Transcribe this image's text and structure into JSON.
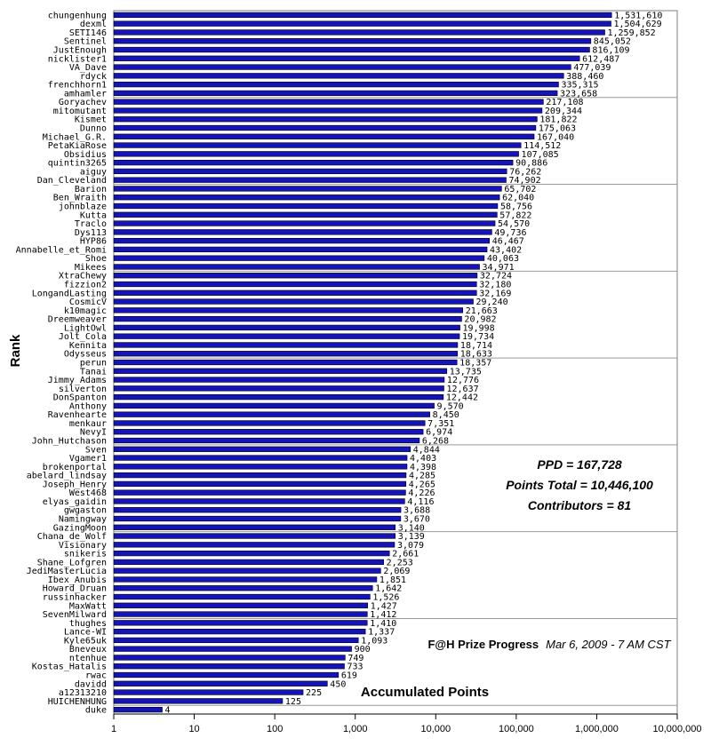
{
  "chart_data": {
    "type": "bar",
    "orientation": "horizontal",
    "xscale": "log",
    "xlim": [
      1,
      10000000
    ],
    "xticks": [
      "1",
      "10",
      "100",
      "1,000",
      "10,000",
      "100,000",
      "1,000,000",
      "10,000,000"
    ],
    "xlabel": "Accumulated Points",
    "ylabel": "Rank",
    "bar_color": "#1414b8",
    "bar_edge_color": "#000000",
    "grid": "horizontal separators every 10 rows",
    "legend": "none",
    "categories": [
      "chungenhung",
      "dexml",
      "SETI146",
      "Sentinel",
      "JustEnough",
      "nicklister1",
      "VA_Dave",
      "rdyck",
      "frenchhorn1",
      "amhamler",
      "Goryachev",
      "mitomutant",
      "Kismet",
      "Dunno",
      "Michael_G.R.",
      "PetaKiaRose",
      "Obsidius",
      "quintin3265",
      "aiguy",
      "Dan_Cleveland",
      "Barion",
      "Ben_Wraith",
      "johnblaze",
      "Kutta",
      "Traclo",
      "Dys113",
      "HYP86",
      "Annabelle_et_Romi",
      "Shoe",
      "Mikees",
      "XtraChewy",
      "fizzion2",
      "LongandLasting",
      "CosmicV",
      "k10magic",
      "Dreemweaver",
      "LightOwl",
      "Jolt_Cola",
      "Kennita",
      "Odysseus",
      "perun",
      "Tanai",
      "Jimmy_Adams",
      "silverton",
      "DonSpanton",
      "Anthony",
      "Ravenhearte",
      "menkaur",
      "NevyI",
      "John_Hutchason",
      "Sven",
      "Vgamer1",
      "brokenportal",
      "abelard_lindsay",
      "Joseph_Henry",
      "West468",
      "elyas_gaidin",
      "gwgaston",
      "Namingway",
      "GazingMoon",
      "Chana_de_Wolf",
      "Visionary",
      "snikeris",
      "Shane_Lofgren",
      "JediMasterLucia",
      "Ibex_Anubis",
      "Howard_Druan",
      "russinhacker",
      "MaxWatt",
      "SevenMilward",
      "thughes",
      "Lance-WI",
      "Kyle65uk",
      "Bneveux",
      "ntenhue",
      "Kostas_Hatalis",
      "rwac",
      "davidd",
      "a12313210",
      "HUICHENHUNG",
      "duke"
    ],
    "values": [
      1531610,
      1504629,
      1259852,
      845052,
      816109,
      612487,
      477039,
      388460,
      335315,
      323658,
      217108,
      209344,
      181822,
      175063,
      167040,
      114512,
      107085,
      90886,
      76262,
      74902,
      65702,
      62040,
      58756,
      57822,
      54570,
      49736,
      46467,
      43402,
      40063,
      34971,
      32724,
      32180,
      32169,
      29240,
      21663,
      20982,
      19998,
      19734,
      18714,
      18633,
      18357,
      13735,
      12776,
      12637,
      12442,
      9570,
      8450,
      7351,
      6974,
      6268,
      4844,
      4403,
      4398,
      4285,
      4265,
      4226,
      4116,
      3688,
      3670,
      3140,
      3139,
      3079,
      2661,
      2253,
      2069,
      1851,
      1642,
      1526,
      1427,
      1412,
      1410,
      1337,
      1093,
      900,
      749,
      733,
      619,
      450,
      225,
      125,
      4
    ],
    "value_labels": [
      "1,531,610",
      "1,504,629",
      "1,259,852",
      "845,052",
      "816,109",
      "612,487",
      "477,039",
      "388,460",
      "335,315",
      "323,658",
      "217,108",
      "209,344",
      "181,822",
      "175,063",
      "167,040",
      "114,512",
      "107,085",
      "90,886",
      "76,262",
      "74,902",
      "65,702",
      "62,040",
      "58,756",
      "57,822",
      "54,570",
      "49,736",
      "46,467",
      "43,402",
      "40,063",
      "34,971",
      "32,724",
      "32,180",
      "32,169",
      "29,240",
      "21,663",
      "20,982",
      "19,998",
      "19,734",
      "18,714",
      "18,633",
      "18,357",
      "13,735",
      "12,776",
      "12,637",
      "12,442",
      "9,570",
      "8,450",
      "7,351",
      "6,974",
      "6,268",
      "4,844",
      "4,403",
      "4,398",
      "4,285",
      "4,265",
      "4,226",
      "4,116",
      "3,688",
      "3,670",
      "3,140",
      "3,139",
      "3,079",
      "2,661",
      "2,253",
      "2,069",
      "1,851",
      "1,642",
      "1,526",
      "1,427",
      "1,412",
      "1,410",
      "1,337",
      "1,093",
      "900",
      "749",
      "733",
      "619",
      "450",
      "225",
      "125",
      "4"
    ]
  },
  "stats": {
    "ppd": "PPD = 167,728",
    "points_total": "Points Total = 10,446,100",
    "contributors": "Contributors = 81"
  },
  "footer": {
    "title": "F@H Prize Progress",
    "date": "Mar 6, 2009 - 7 AM CST"
  }
}
